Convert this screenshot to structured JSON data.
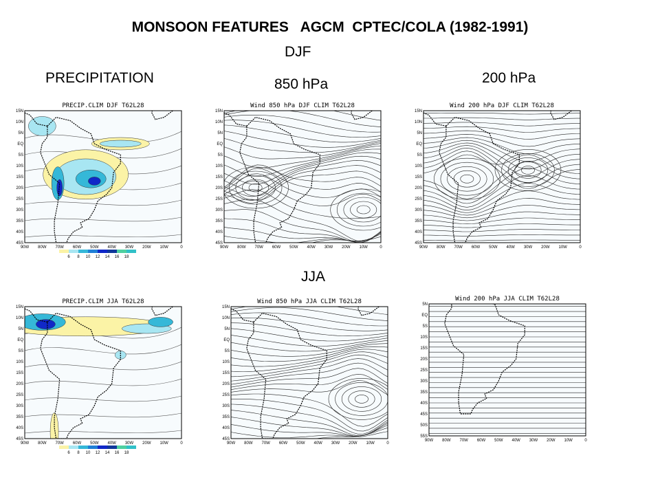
{
  "title": "MONSOON FEATURES   AGCM  CPTEC/COLA (1982-1991)",
  "season_djf": "DJF",
  "season_jja": "JJA",
  "column_headers": {
    "precip": "PRECIPITATION",
    "wind850": "850 hPa",
    "wind200": "200 hPa"
  },
  "panels": {
    "precip_djf": {
      "title": "PRECIP.CLIM  DJF T62L28"
    },
    "wind850_djf": {
      "title": "Wind 850 hPa  DJF CLIM T62L28"
    },
    "wind200_djf": {
      "title": "Wind 200 hPa  DJF CLIM T62L28"
    },
    "precip_jja": {
      "title": "PRECIP.CLIM  JJA T62L28"
    },
    "wind850_jja": {
      "title": "Wind 850 hPa  JJA CLIM T62L28"
    },
    "wind200_jja": {
      "title": "Wind 200 hPa  JJA CLIM T62L28"
    }
  },
  "lat_labels": [
    "15N",
    "10N",
    "5N",
    "EQ",
    "5S",
    "10S",
    "15S",
    "20S",
    "25S",
    "30S",
    "35S",
    "40S",
    "45S"
  ],
  "lat_labels_jja200": [
    "5N",
    "EQ",
    "5S",
    "10S",
    "15S",
    "20S",
    "25S",
    "30S",
    "35S",
    "40S",
    "45S",
    "50S",
    "55S"
  ],
  "lon_labels": [
    "90W",
    "80W",
    "70W",
    "60W",
    "50W",
    "40W",
    "30W",
    "20W",
    "10W",
    "0"
  ],
  "colorbar": {
    "values": [
      "6",
      "8",
      "10",
      "12",
      "14",
      "16",
      "18"
    ],
    "colors": [
      "#fbf3a6",
      "#a8e6f2",
      "#35b8d8",
      "#1f7fd6",
      "#1028c8",
      "#10389a",
      "#4fd0a0",
      "#30c0c8"
    ]
  },
  "colors": {
    "ocean": "#f7fbfd",
    "precip_light": "#fbf3a6",
    "precip_mid": "#a8e6f2",
    "precip_high": "#35b8d8",
    "precip_max": "#1028c8"
  }
}
